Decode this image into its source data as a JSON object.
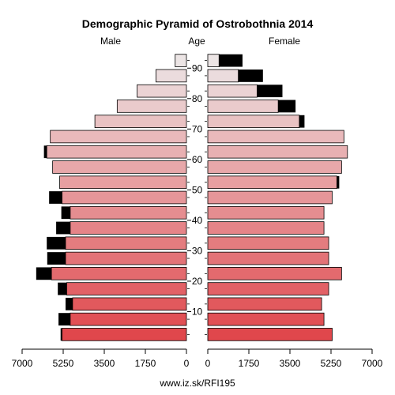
{
  "chart_data": {
    "type": "bar",
    "subtype": "population-pyramid",
    "title": "Demographic Pyramid of Ostrobothnia 2014",
    "left_label": "Male",
    "center_label": "Age",
    "right_label": "Female",
    "source": "www.iz.sk/RFI195",
    "age_groups": [
      "0-4",
      "5-9",
      "10-14",
      "15-19",
      "20-24",
      "25-29",
      "30-34",
      "35-39",
      "40-44",
      "45-49",
      "50-54",
      "55-59",
      "60-64",
      "65-69",
      "70-74",
      "75-79",
      "80-84",
      "85-89",
      "90+"
    ],
    "age_tick_labels": [
      "10",
      "20",
      "30",
      "40",
      "50",
      "60",
      "70",
      "80",
      "90"
    ],
    "age_tick_positions": [
      10,
      20,
      30,
      40,
      50,
      60,
      70,
      80,
      90
    ],
    "x_tick_values": [
      7000,
      5250,
      3500,
      1750,
      0
    ],
    "x_tick_labels_left": [
      "7000",
      "5250",
      "3500",
      "1750",
      "0"
    ],
    "x_tick_labels_right": [
      "0",
      "1750",
      "3500",
      "5250",
      "7000"
    ],
    "xlim": [
      0,
      7000
    ],
    "series": [
      {
        "name": "Male",
        "values": [
          5300,
          4950,
          4850,
          5100,
          5750,
          5150,
          5150,
          4950,
          4950,
          5300,
          5400,
          5700,
          5950,
          5800,
          3900,
          2950,
          2100,
          1300,
          480
        ]
      },
      {
        "name": "Male excess",
        "values": [
          60,
          500,
          300,
          380,
          650,
          780,
          800,
          600,
          380,
          550,
          0,
          0,
          120,
          0,
          0,
          0,
          0,
          0,
          0
        ]
      },
      {
        "name": "Female",
        "values": [
          5300,
          4950,
          4850,
          5150,
          5700,
          5150,
          5150,
          4950,
          4950,
          5300,
          5500,
          5700,
          5950,
          5800,
          3900,
          3000,
          2100,
          1300,
          480
        ]
      },
      {
        "name": "Female excess",
        "values": [
          0,
          0,
          0,
          0,
          0,
          0,
          0,
          0,
          0,
          0,
          100,
          0,
          0,
          0,
          220,
          740,
          1080,
          1050,
          1000
        ]
      }
    ],
    "colors": {
      "excess": "#000000",
      "outline": "#000000",
      "young": "#e0474c",
      "old": "#ece5e5"
    },
    "grid": false
  }
}
